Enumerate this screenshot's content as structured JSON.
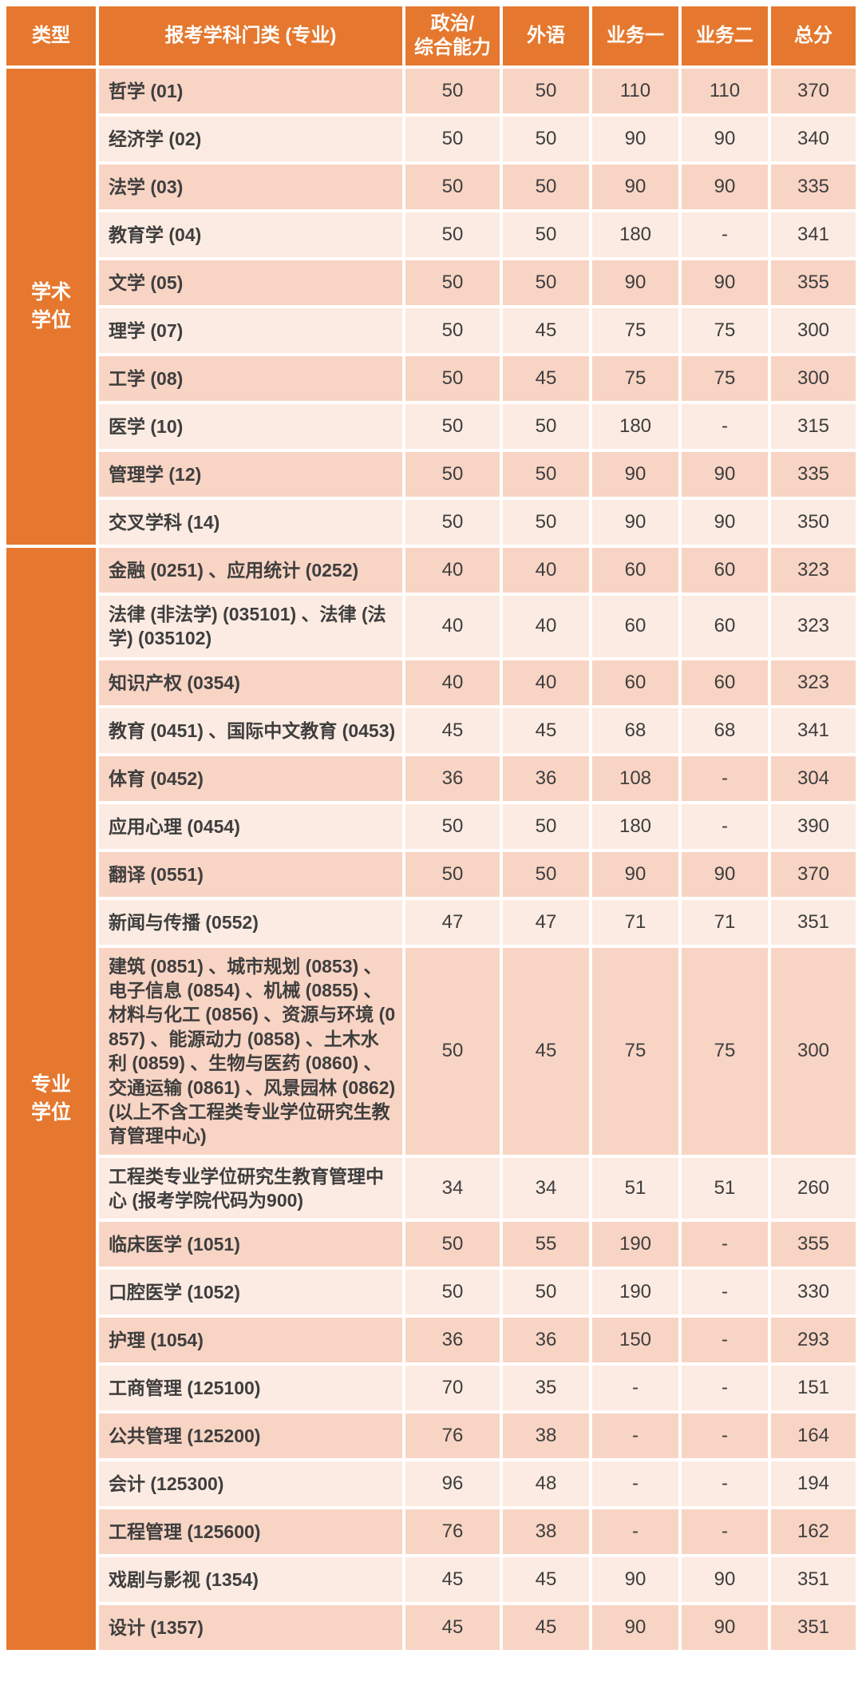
{
  "colors": {
    "orange": "#E5782E",
    "band_dark": "#F8D4C4",
    "band_light": "#FCEBE2",
    "body_text": "#3E3E3E",
    "header_text": "#FFFFFF"
  },
  "table": {
    "header": {
      "type": "类型",
      "subject": "报考学科门类 (专业)",
      "politics": "政治/\n综合能力",
      "foreign": "外语",
      "business1": "业务一",
      "business2": "业务二",
      "total": "总分"
    },
    "sections": [
      {
        "type_label": "学术\n学位",
        "rows": [
          {
            "subject": "哲学 (01)",
            "scores": [
              "50",
              "50",
              "110",
              "110",
              "370"
            ]
          },
          {
            "subject": "经济学 (02)",
            "scores": [
              "50",
              "50",
              "90",
              "90",
              "340"
            ]
          },
          {
            "subject": "法学 (03)",
            "scores": [
              "50",
              "50",
              "90",
              "90",
              "335"
            ]
          },
          {
            "subject": "教育学 (04)",
            "scores": [
              "50",
              "50",
              "180",
              "-",
              "341"
            ]
          },
          {
            "subject": "文学 (05)",
            "scores": [
              "50",
              "50",
              "90",
              "90",
              "355"
            ]
          },
          {
            "subject": "理学 (07)",
            "scores": [
              "50",
              "45",
              "75",
              "75",
              "300"
            ]
          },
          {
            "subject": "工学 (08)",
            "scores": [
              "50",
              "45",
              "75",
              "75",
              "300"
            ]
          },
          {
            "subject": "医学 (10)",
            "scores": [
              "50",
              "50",
              "180",
              "-",
              "315"
            ]
          },
          {
            "subject": "管理学 (12)",
            "scores": [
              "50",
              "50",
              "90",
              "90",
              "335"
            ]
          },
          {
            "subject": "交叉学科 (14)",
            "scores": [
              "50",
              "50",
              "90",
              "90",
              "350"
            ]
          }
        ]
      },
      {
        "type_label": "专业\n学位",
        "rows": [
          {
            "subject": "金融 (0251) 、应用统计 (0252)",
            "scores": [
              "40",
              "40",
              "60",
              "60",
              "323"
            ]
          },
          {
            "subject": "法律 (非法学) (035101) 、法律 (法学) (035102)",
            "scores": [
              "40",
              "40",
              "60",
              "60",
              "323"
            ]
          },
          {
            "subject": "知识产权 (0354)",
            "scores": [
              "40",
              "40",
              "60",
              "60",
              "323"
            ]
          },
          {
            "subject": "教育 (0451) 、国际中文教育 (0453)",
            "scores": [
              "45",
              "45",
              "68",
              "68",
              "341"
            ]
          },
          {
            "subject": "体育 (0452)",
            "scores": [
              "36",
              "36",
              "108",
              "-",
              "304"
            ]
          },
          {
            "subject": "应用心理 (0454)",
            "scores": [
              "50",
              "50",
              "180",
              "-",
              "390"
            ]
          },
          {
            "subject": "翻译 (0551)",
            "scores": [
              "50",
              "50",
              "90",
              "90",
              "370"
            ]
          },
          {
            "subject": "新闻与传播 (0552)",
            "scores": [
              "47",
              "47",
              "71",
              "71",
              "351"
            ]
          },
          {
            "subject": "建筑 (0851) 、城市规划 (0853) 、电子信息 (0854) 、机械 (0855) 、材料与化工 (0856) 、资源与环境 (0857) 、能源动力 (0858) 、土木水利 (0859) 、生物与医药 (0860) 、交通运输 (0861) 、风景园林 (0862)  (以上不含工程类专业学位研究生教育管理中心)",
            "scores": [
              "50",
              "45",
              "75",
              "75",
              "300"
            ]
          },
          {
            "subject": "工程类专业学位研究生教育管理中心 (报考学院代码为900)",
            "scores": [
              "34",
              "34",
              "51",
              "51",
              "260"
            ]
          },
          {
            "subject": "临床医学 (1051)",
            "scores": [
              "50",
              "55",
              "190",
              "-",
              "355"
            ]
          },
          {
            "subject": "口腔医学 (1052)",
            "scores": [
              "50",
              "50",
              "190",
              "-",
              "330"
            ]
          },
          {
            "subject": "护理 (1054)",
            "scores": [
              "36",
              "36",
              "150",
              "-",
              "293"
            ]
          },
          {
            "subject": "工商管理 (125100)",
            "scores": [
              "70",
              "35",
              "-",
              "-",
              "151"
            ]
          },
          {
            "subject": "公共管理 (125200)",
            "scores": [
              "76",
              "38",
              "-",
              "-",
              "164"
            ]
          },
          {
            "subject": "会计 (125300)",
            "scores": [
              "96",
              "48",
              "-",
              "-",
              "194"
            ]
          },
          {
            "subject": "工程管理 (125600)",
            "scores": [
              "76",
              "38",
              "-",
              "-",
              "162"
            ]
          },
          {
            "subject": "戏剧与影视 (1354)",
            "scores": [
              "45",
              "45",
              "90",
              "90",
              "351"
            ]
          },
          {
            "subject": "设计 (1357)",
            "scores": [
              "45",
              "45",
              "90",
              "90",
              "351"
            ]
          }
        ]
      }
    ]
  }
}
